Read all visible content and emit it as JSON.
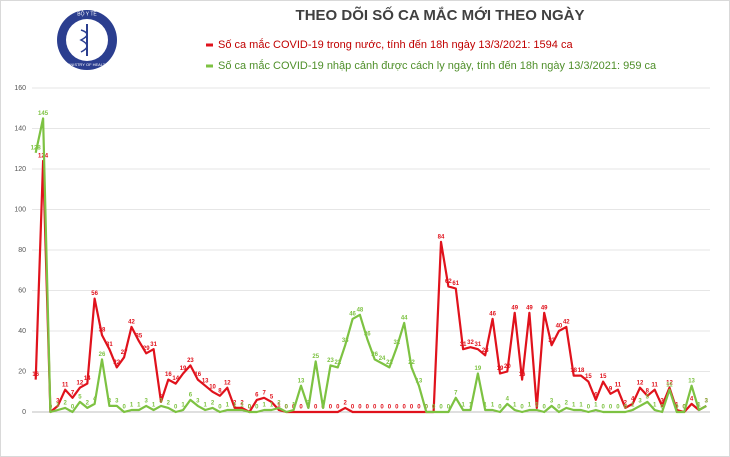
{
  "logo": {
    "top": "BỘ Y TẾ",
    "bottom": "MINISTRY OF HEALTH"
  },
  "chart_data": {
    "type": "line",
    "title": "THEO DÕI SỐ CA MẮC MỚI THEO NGÀY",
    "categories": [
      null,
      null,
      null,
      null,
      null,
      null,
      null,
      null,
      null,
      null,
      null,
      null,
      null,
      null,
      null,
      null,
      null,
      null,
      null,
      null,
      null,
      null,
      null,
      null,
      null,
      null,
      null,
      null,
      null,
      null,
      null,
      null,
      null,
      null,
      null,
      null,
      null,
      null,
      null,
      null,
      null,
      null,
      null,
      null,
      null,
      null,
      null,
      null,
      null,
      null,
      null,
      null,
      null,
      null,
      null,
      null,
      null,
      null,
      null,
      null,
      null,
      null,
      null,
      null,
      null,
      null,
      null,
      null,
      null,
      null,
      null,
      null,
      null,
      null,
      null,
      null,
      null,
      null,
      null,
      null,
      null,
      null,
      null,
      null,
      null,
      null,
      null,
      null,
      null,
      null,
      null,
      null
    ],
    "series": [
      {
        "name": "Số ca mắc COVID-19 trong nước, tính đến 18h ngày 13/3/2021: 1594 ca",
        "color": "#e0121c",
        "values": [
          16,
          124,
          0,
          3,
          11,
          7,
          12,
          14,
          56,
          38,
          31,
          22,
          27,
          42,
          35,
          29,
          31,
          5,
          16,
          14,
          19,
          23,
          16,
          13,
          10,
          8,
          12,
          2,
          2,
          0,
          6,
          7,
          5,
          1,
          0,
          0,
          0,
          0,
          0,
          0,
          0,
          0,
          2,
          0,
          0,
          0,
          0,
          0,
          0,
          0,
          0,
          0,
          0,
          0,
          0,
          84,
          62,
          61,
          31,
          32,
          31,
          28,
          46,
          19,
          20,
          49,
          16,
          49,
          2,
          49,
          33,
          40,
          42,
          18,
          18,
          15,
          6,
          15,
          9,
          11,
          2,
          4,
          12,
          8,
          11,
          3,
          12,
          1,
          0,
          4,
          1,
          3
        ]
      },
      {
        "name": "Số ca mắc COVID-19 nhập cảnh được cách ly ngày, tính đến 18h ngày 13/3/2021: 959 ca",
        "color": "#7dc242",
        "values": [
          128,
          145,
          0,
          1,
          2,
          0,
          5,
          2,
          4,
          26,
          3,
          3,
          0,
          1,
          1,
          3,
          1,
          3,
          2,
          0,
          1,
          6,
          3,
          1,
          2,
          0,
          1,
          1,
          1,
          0,
          0,
          1,
          1,
          2,
          0,
          1,
          13,
          2,
          25,
          2,
          23,
          22,
          33,
          46,
          48,
          36,
          26,
          24,
          22,
          32,
          44,
          22,
          13,
          0,
          0,
          0,
          0,
          7,
          1,
          1,
          19,
          1,
          1,
          0,
          4,
          1,
          0,
          1,
          1,
          0,
          3,
          0,
          2,
          1,
          1,
          0,
          1,
          0,
          0,
          0,
          0,
          1,
          3,
          5,
          1,
          0,
          11,
          0,
          0,
          13,
          1,
          3
        ]
      }
    ],
    "ylim": [
      0,
      160
    ],
    "yticks": [
      0,
      20,
      40,
      60,
      80,
      100,
      120,
      140,
      160
    ],
    "grid": true
  }
}
